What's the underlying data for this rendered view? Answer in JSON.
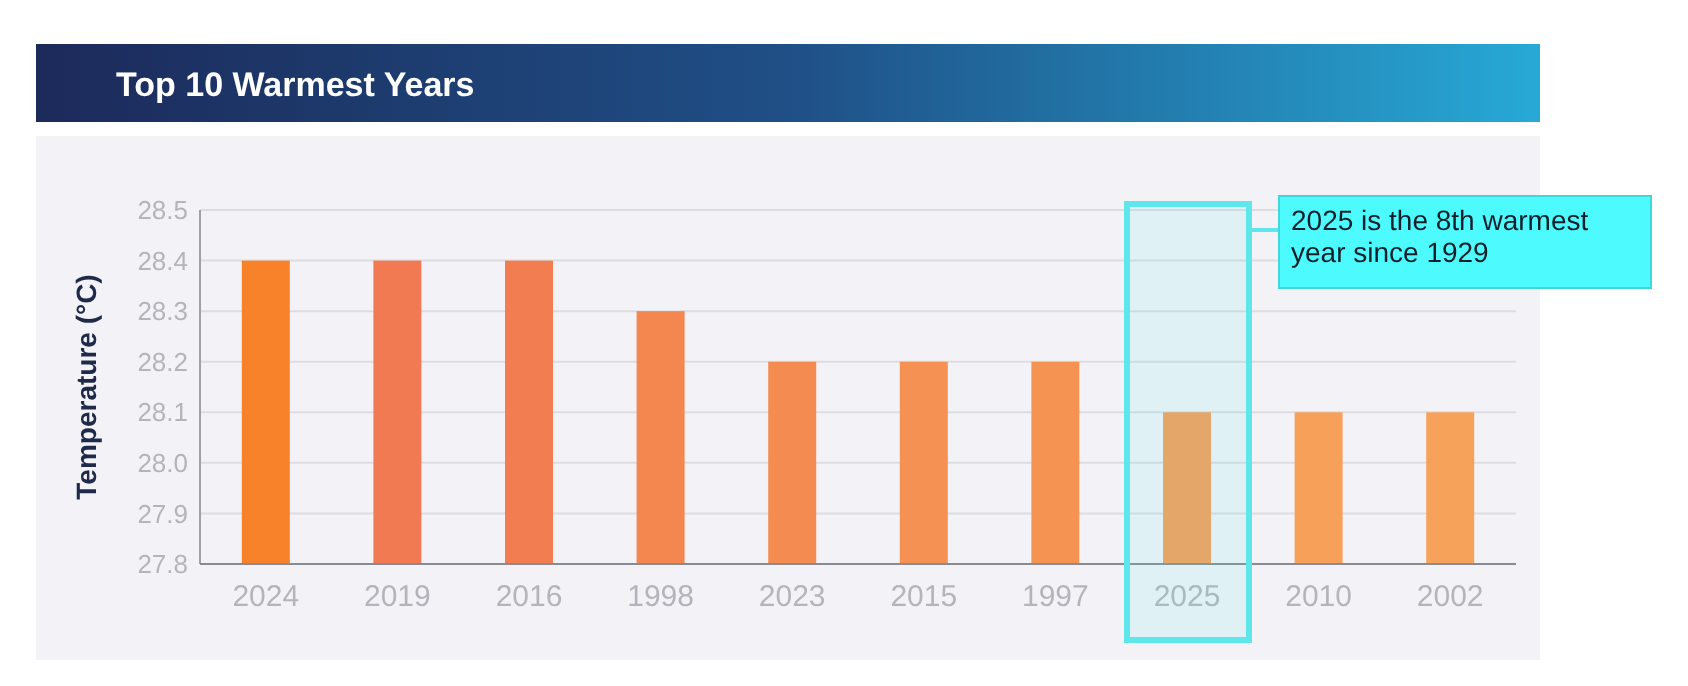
{
  "chart_data": {
    "type": "bar",
    "title": "Top 10 Warmest Years",
    "ylabel": "Temperature (°C)",
    "categories": [
      "2024",
      "2019",
      "2016",
      "1998",
      "2023",
      "2015",
      "1997",
      "2025",
      "2010",
      "2002"
    ],
    "values": [
      28.4,
      28.4,
      28.4,
      28.3,
      28.2,
      28.2,
      28.2,
      28.1,
      28.1,
      28.1
    ],
    "colors": [
      "#f7822a",
      "#f27a52",
      "#f27d50",
      "#f4864f",
      "#f48c52",
      "#f59152",
      "#f59452",
      "#f79e58",
      "#f7a05a",
      "#f7a25b"
    ],
    "ylim": [
      27.8,
      28.5
    ],
    "yticks": [
      {
        "value": 27.8,
        "label": "27.8"
      },
      {
        "value": 27.9,
        "label": "27.9"
      },
      {
        "value": 28.0,
        "label": "28.0"
      },
      {
        "value": 28.1,
        "label": "28.1"
      },
      {
        "value": 28.2,
        "label": "28.2"
      },
      {
        "value": 28.3,
        "label": "28.3"
      },
      {
        "value": 28.4,
        "label": "28.4"
      },
      {
        "value": 28.5,
        "label": "28.5"
      }
    ],
    "grid": "y",
    "bands": [
      {
        "axis": "x",
        "from": "2025",
        "to": "2025",
        "label": "2025 is the 8th warmest year since 1929",
        "color": "#5ee6ea"
      }
    ]
  }
}
